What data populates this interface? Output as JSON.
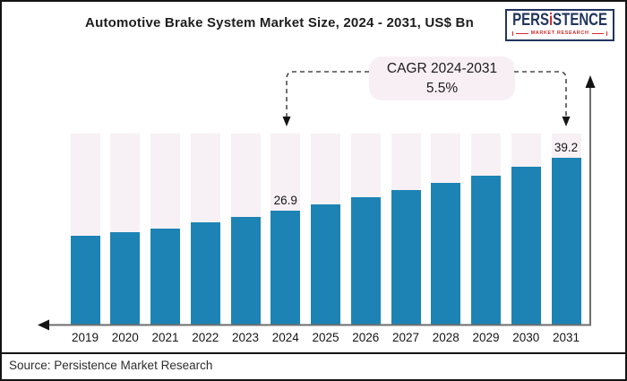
{
  "header": {
    "title": "Automotive Brake System Market Size, 2024 - 2031, US$ Bn"
  },
  "logo": {
    "brand_pre": "PERS",
    "brand_i": "i",
    "brand_post": "STENCE",
    "tagline": "MARKET RESEARCH"
  },
  "callout": {
    "title": "CAGR 2024-2031",
    "value": "5.5%"
  },
  "source_note": "Source: Persistence Market Research",
  "colors": {
    "bar_fill": "#1d83b4",
    "bar_track": "#f7f1f5",
    "callout_bg": "#f8eff5",
    "axis_line": "#6e6e6e",
    "arrowhead": "#141414",
    "connector": "#4a4a4a",
    "logo_navy": "#21355f",
    "logo_red": "#cf2e2e"
  },
  "chart_data": {
    "type": "bar",
    "title": "Automotive Brake System Market Size, 2024 - 2031, US$ Bn",
    "unit": "US$ Bn",
    "categories": [
      "2019",
      "2020",
      "2021",
      "2022",
      "2023",
      "2024",
      "2025",
      "2026",
      "2027",
      "2028",
      "2029",
      "2030",
      "2031"
    ],
    "values": [
      21.0,
      21.7,
      22.7,
      24.0,
      25.4,
      26.9,
      28.4,
      29.9,
      31.6,
      33.3,
      35.1,
      37.1,
      39.2
    ],
    "data_labels": {
      "2024": "26.9",
      "2031": "39.2"
    },
    "ylim": [
      0,
      45
    ],
    "xlabel": "",
    "ylabel": "",
    "grid": false,
    "legend": false,
    "annotation": {
      "label": "CAGR 2024-2031",
      "value": "5.5%",
      "from_category": "2024",
      "to_category": "2031"
    }
  }
}
